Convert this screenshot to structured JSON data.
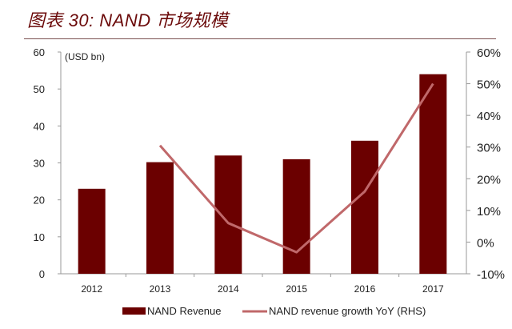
{
  "header": {
    "title": "图表 30: NAND 市场规模"
  },
  "chart_data": {
    "type": "bar+line",
    "categories": [
      "2012",
      "2013",
      "2014",
      "2015",
      "2016",
      "2017"
    ],
    "series": [
      {
        "name": "NAND Revenue",
        "type": "bar",
        "axis": "left",
        "values": [
          23,
          30.2,
          32,
          31,
          36,
          54
        ],
        "color": "#6b0000"
      },
      {
        "name": "NAND revenue growth YoY (RHS)",
        "type": "line",
        "axis": "right",
        "values": [
          null,
          30.5,
          6,
          -3.2,
          16,
          50
        ],
        "color": "#c0686a"
      }
    ],
    "left_axis": {
      "unit_label": "(USD bn)",
      "ylim": [
        0,
        60
      ],
      "ticks": [
        "0",
        "10",
        "20",
        "30",
        "40",
        "50",
        "60"
      ]
    },
    "right_axis": {
      "ylim": [
        -10,
        60
      ],
      "ticks": [
        "-10%",
        "0%",
        "10%",
        "20%",
        "30%",
        "40%",
        "50%",
        "60%"
      ]
    },
    "grid": false,
    "legend": "bottom"
  }
}
